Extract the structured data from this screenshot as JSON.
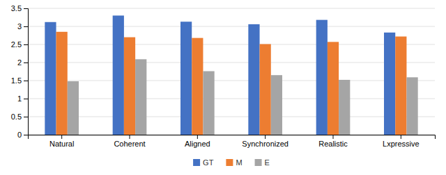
{
  "chart_data": {
    "type": "bar",
    "categories": [
      "Natural",
      "Coherent",
      "Aligned",
      "Synchronized",
      "Realistic",
      "Lxpressive"
    ],
    "series": [
      {
        "name": "GT",
        "color": "#4472C4",
        "values": [
          3.12,
          3.3,
          3.13,
          3.06,
          3.18,
          2.83
        ]
      },
      {
        "name": "M",
        "color": "#ED7D31",
        "values": [
          2.85,
          2.7,
          2.68,
          2.51,
          2.57,
          2.72
        ]
      },
      {
        "name": "E",
        "color": "#A5A5A5",
        "values": [
          1.48,
          2.09,
          1.76,
          1.65,
          1.52,
          1.59
        ]
      }
    ],
    "ylim": [
      0,
      3.5
    ],
    "yticks": [
      0,
      0.5,
      1,
      1.5,
      2,
      2.5,
      3,
      3.5
    ],
    "grid": true,
    "legend": "bottom"
  }
}
